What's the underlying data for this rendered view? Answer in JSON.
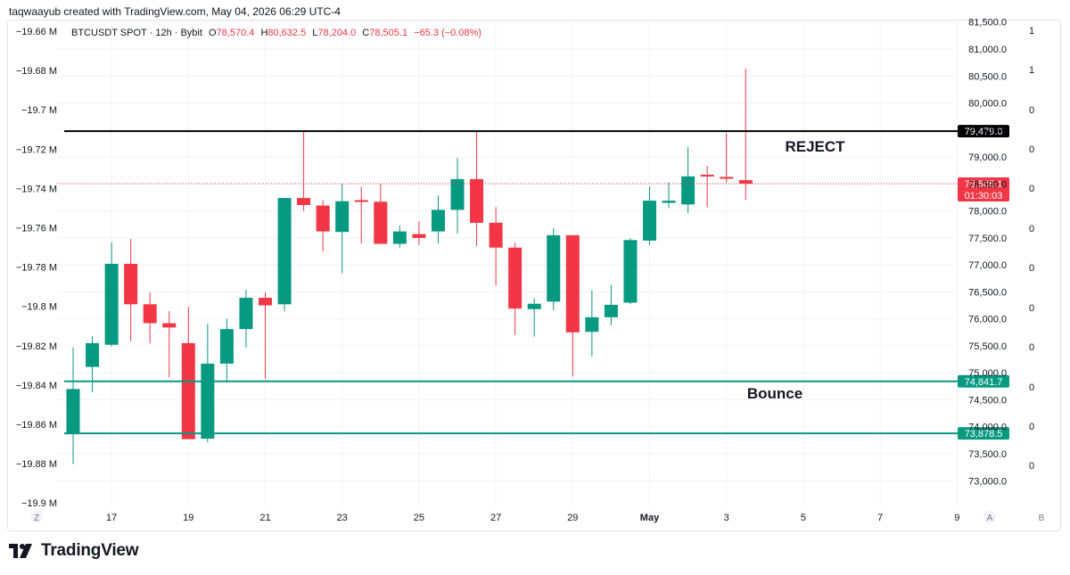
{
  "header": {
    "credit": "taqwaayub created with TradingView.com, May 04, 2026 06:29 UTC-4"
  },
  "legend": {
    "symbol": "BTCUSDT SPOT · 12h · Bybit",
    "open_label": "O",
    "open": "78,570.4",
    "high_label": "H",
    "high": "80,632.5",
    "low_label": "L",
    "low": "78,204.0",
    "close_label": "C",
    "close": "78,505.1",
    "change": "−65.3 (−0.08%)"
  },
  "brand": {
    "name": "TradingView"
  },
  "colors": {
    "up": "#089981",
    "down": "#f23645",
    "resistance": "#000000",
    "support": "#089981",
    "grid": "#f0f3fa",
    "axis_text": "#131722"
  },
  "chart_data": {
    "type": "candlestick",
    "symbol": "BTCUSDT SPOT",
    "interval": "12h",
    "exchange": "Bybit",
    "grid": true,
    "price_axis": {
      "min": 72700,
      "max": 81700,
      "ticks": [
        73000,
        73500,
        74000,
        74500,
        75000,
        75500,
        76000,
        76500,
        77000,
        77500,
        78000,
        78500,
        79000,
        79500,
        80000,
        80500,
        81000,
        81500
      ],
      "tick_labels": [
        "73,000.0",
        "73,500.0",
        "74,000.0",
        "74,500.0",
        "75,000.0",
        "75,500.0",
        "76,000.0",
        "76,500.0",
        "77,000.0",
        "77,500.0",
        "78,000.0",
        "78,500.0",
        "79,000.0",
        "79,500.0",
        "80,000.0",
        "80,500.0",
        "81,000.0",
        "81,500.0"
      ]
    },
    "left_axis": {
      "labels": [
        "−19.66 M",
        "−19.68 M",
        "−19.7 M",
        "−19.72 M",
        "−19.74 M",
        "−19.76 M",
        "−19.78 M",
        "−19.8 M",
        "−19.82 M",
        "−19.84 M",
        "−19.86 M",
        "−19.88 M",
        "−19.9 M"
      ]
    },
    "far_right_axis": {
      "labels": [
        "1",
        "1",
        "0",
        "0",
        "0",
        "0",
        "0",
        "0",
        "0",
        "0",
        "0",
        "0"
      ]
    },
    "x_axis": {
      "labels": [
        "17",
        "19",
        "21",
        "23",
        "25",
        "27",
        "29",
        "May",
        "3",
        "5",
        "7",
        "9"
      ]
    },
    "axis_corner_labels": {
      "left": "Z",
      "right_a": "A",
      "right_b": "B"
    },
    "candles": [
      {
        "o": 73870,
        "h": 75470,
        "l": 73310,
        "c": 74700
      },
      {
        "o": 75110,
        "h": 75680,
        "l": 74640,
        "c": 75550
      },
      {
        "o": 75520,
        "h": 77420,
        "l": 75490,
        "c": 77020
      },
      {
        "o": 77020,
        "h": 77480,
        "l": 75590,
        "c": 76270
      },
      {
        "o": 76270,
        "h": 76490,
        "l": 75550,
        "c": 75920
      },
      {
        "o": 75920,
        "h": 76140,
        "l": 74920,
        "c": 75840
      },
      {
        "o": 75550,
        "h": 76220,
        "l": 73800,
        "c": 73770
      },
      {
        "o": 73780,
        "h": 75910,
        "l": 73710,
        "c": 75170
      },
      {
        "o": 75170,
        "h": 76000,
        "l": 74830,
        "c": 75810
      },
      {
        "o": 75810,
        "h": 76540,
        "l": 75470,
        "c": 76390
      },
      {
        "o": 76390,
        "h": 76490,
        "l": 74890,
        "c": 76250
      },
      {
        "o": 76270,
        "h": 78240,
        "l": 76140,
        "c": 78240
      },
      {
        "o": 78240,
        "h": 79470,
        "l": 78000,
        "c": 78110
      },
      {
        "o": 78100,
        "h": 78200,
        "l": 77250,
        "c": 77620
      },
      {
        "o": 77610,
        "h": 78500,
        "l": 76850,
        "c": 78180
      },
      {
        "o": 78200,
        "h": 78450,
        "l": 77400,
        "c": 78180
      },
      {
        "o": 78170,
        "h": 78500,
        "l": 77400,
        "c": 77390
      },
      {
        "o": 77390,
        "h": 77730,
        "l": 77320,
        "c": 77620
      },
      {
        "o": 77570,
        "h": 77810,
        "l": 77370,
        "c": 77500
      },
      {
        "o": 77620,
        "h": 78290,
        "l": 77400,
        "c": 78020
      },
      {
        "o": 78020,
        "h": 78980,
        "l": 77580,
        "c": 78590
      },
      {
        "o": 78590,
        "h": 79480,
        "l": 77350,
        "c": 77780
      },
      {
        "o": 77780,
        "h": 78070,
        "l": 76620,
        "c": 77320
      },
      {
        "o": 77320,
        "h": 77410,
        "l": 75700,
        "c": 76190
      },
      {
        "o": 76180,
        "h": 76380,
        "l": 75670,
        "c": 76280
      },
      {
        "o": 76320,
        "h": 77680,
        "l": 76160,
        "c": 77550
      },
      {
        "o": 77550,
        "h": 77550,
        "l": 74930,
        "c": 75750
      },
      {
        "o": 75760,
        "h": 76530,
        "l": 75300,
        "c": 76030
      },
      {
        "o": 76030,
        "h": 76630,
        "l": 75880,
        "c": 76260
      },
      {
        "o": 76300,
        "h": 77490,
        "l": 76270,
        "c": 77460
      },
      {
        "o": 77450,
        "h": 78450,
        "l": 77370,
        "c": 78190
      },
      {
        "o": 78150,
        "h": 78530,
        "l": 78050,
        "c": 78190
      },
      {
        "o": 78120,
        "h": 79180,
        "l": 77960,
        "c": 78640
      },
      {
        "o": 78670,
        "h": 78830,
        "l": 78070,
        "c": 78660
      },
      {
        "o": 78630,
        "h": 79440,
        "l": 78520,
        "c": 78600
      },
      {
        "o": 78570,
        "h": 80632.5,
        "l": 78204,
        "c": 78505.1
      }
    ],
    "horizontal_lines": [
      {
        "price": 79479.0,
        "label": "79,479.0",
        "color": "#000000",
        "style": "solid"
      },
      {
        "price": 74841.7,
        "label": "74,841.7",
        "color": "#089981",
        "style": "solid"
      },
      {
        "price": 73878.5,
        "label": "73,878.5",
        "color": "#089981",
        "style": "solid"
      }
    ],
    "last_price": {
      "price": 78505.1,
      "label": "78,505.1",
      "countdown": "01:30:03",
      "color": "#f23645"
    },
    "annotations": [
      {
        "text": "REJECT",
        "price": 79200
      },
      {
        "text": "Bounce",
        "price": 74620
      }
    ]
  }
}
